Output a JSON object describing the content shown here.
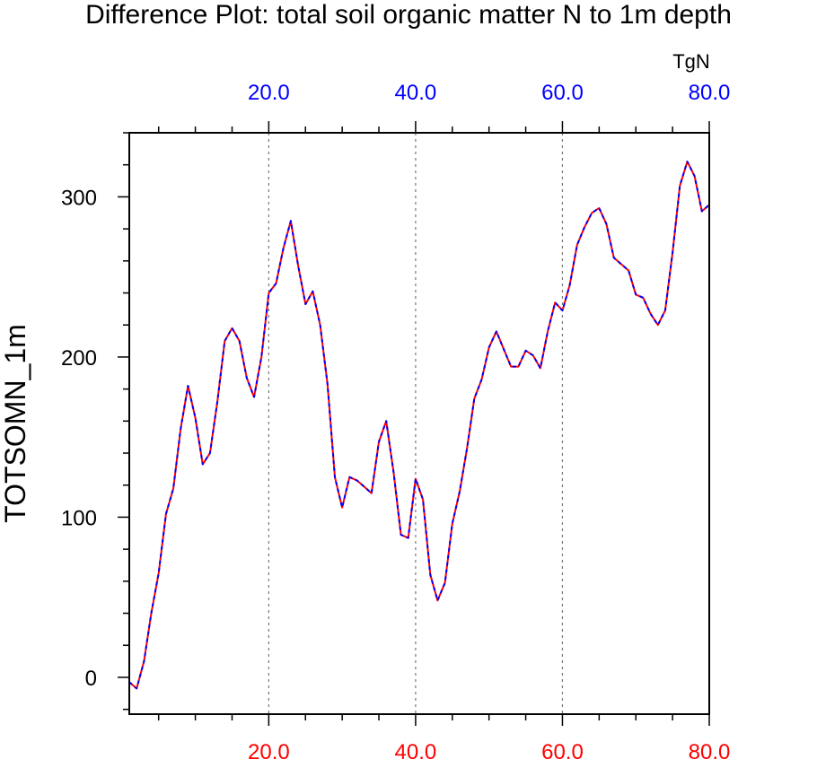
{
  "chart_data": {
    "type": "line",
    "title": "Difference Plot: total soil organic matter N to 1m depth",
    "units_label": "TgN",
    "ylabel": "TOTSOMN_1m",
    "xlabel": "",
    "xlim": [
      1,
      80
    ],
    "ylim": [
      -23,
      340
    ],
    "x_ticks": [
      20,
      40,
      60,
      80
    ],
    "x_tick_labels": [
      "20.0",
      "40.0",
      "60.0",
      "80.0"
    ],
    "x_minor_ticks": [
      5,
      10,
      15,
      25,
      30,
      35,
      45,
      50,
      55,
      65,
      70,
      75
    ],
    "y_ticks": [
      0,
      100,
      200,
      300
    ],
    "y_tick_labels": [
      "0",
      "100",
      "200",
      "300"
    ],
    "y_minor_ticks": [
      -20,
      20,
      40,
      60,
      80,
      120,
      140,
      160,
      180,
      220,
      240,
      260,
      280,
      320,
      340
    ],
    "grid": "vertical dashed at major x ticks",
    "colors": {
      "bottom_axis": "#ff0000",
      "top_axis": "#0000ff",
      "series_a": "#ff0000",
      "series_b": "#0000ff",
      "grid": "#777777"
    },
    "series": [
      {
        "name": "series_red_dashed",
        "color": "#ff0000",
        "x": [
          1,
          2,
          3,
          4,
          5,
          6,
          7,
          8,
          9,
          10,
          11,
          12,
          13,
          14,
          15,
          16,
          17,
          18,
          19,
          20,
          21,
          22,
          23,
          24,
          25,
          26,
          27,
          28,
          29,
          30,
          31,
          32,
          33,
          34,
          35,
          36,
          37,
          38,
          39,
          40,
          41,
          42,
          43,
          44,
          45,
          46,
          47,
          48,
          49,
          50,
          51,
          52,
          53,
          54,
          55,
          56,
          57,
          58,
          59,
          60,
          61,
          62,
          63,
          64,
          65,
          66,
          67,
          68,
          69,
          70,
          71,
          72,
          73,
          74,
          75,
          76,
          77,
          78,
          79,
          80
        ],
        "values": [
          -3,
          -7,
          10,
          40,
          65,
          102,
          118,
          155,
          182,
          162,
          133,
          140,
          172,
          210,
          218,
          210,
          187,
          175,
          200,
          240,
          246,
          268,
          285,
          257,
          233,
          241,
          220,
          183,
          125,
          106,
          125,
          123,
          119,
          115,
          147,
          160,
          128,
          89,
          87,
          124,
          111,
          64,
          48,
          59,
          96,
          116,
          143,
          174,
          186,
          206,
          216,
          205,
          194,
          194,
          204,
          201,
          193,
          216,
          234,
          229,
          245,
          270,
          281,
          290,
          293,
          283,
          262,
          258,
          254,
          239,
          237,
          227,
          220,
          229,
          265,
          307,
          322,
          313,
          291,
          295
        ]
      },
      {
        "name": "series_blue_dashed",
        "color": "#0000ff",
        "x": [
          1,
          2,
          3,
          4,
          5,
          6,
          7,
          8,
          9,
          10,
          11,
          12,
          13,
          14,
          15,
          16,
          17,
          18,
          19,
          20,
          21,
          22,
          23,
          24,
          25,
          26,
          27,
          28,
          29,
          30,
          31,
          32,
          33,
          34,
          35,
          36,
          37,
          38,
          39,
          40,
          41,
          42,
          43,
          44,
          45,
          46,
          47,
          48,
          49,
          50,
          51,
          52,
          53,
          54,
          55,
          56,
          57,
          58,
          59,
          60,
          61,
          62,
          63,
          64,
          65,
          66,
          67,
          68,
          69,
          70,
          71,
          72,
          73,
          74,
          75,
          76,
          77,
          78,
          79,
          80
        ],
        "values": [
          -3,
          -7,
          10,
          40,
          65,
          102,
          118,
          155,
          182,
          162,
          133,
          140,
          172,
          210,
          218,
          210,
          187,
          175,
          200,
          240,
          246,
          268,
          285,
          257,
          233,
          241,
          220,
          183,
          125,
          106,
          125,
          123,
          119,
          115,
          147,
          160,
          128,
          89,
          87,
          124,
          111,
          64,
          48,
          59,
          96,
          116,
          143,
          174,
          186,
          206,
          216,
          205,
          194,
          194,
          204,
          201,
          193,
          216,
          234,
          229,
          245,
          270,
          281,
          290,
          293,
          283,
          262,
          258,
          254,
          239,
          237,
          227,
          220,
          229,
          265,
          307,
          322,
          313,
          291,
          295
        ]
      }
    ]
  }
}
